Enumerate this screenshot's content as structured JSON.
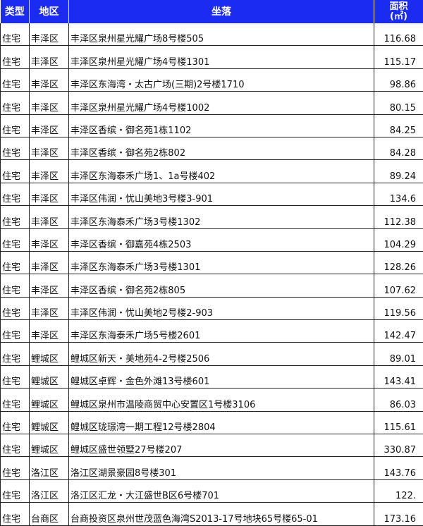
{
  "headers": {
    "type": "类型",
    "district": "地区",
    "location": "坐落",
    "area": "面积",
    "area_unit": "(㎡)"
  },
  "header_color": "#1c2bf2",
  "rows": [
    {
      "type": "住宅",
      "district": "丰泽区",
      "location": "丰泽区泉州星光耀广场8号楼505",
      "area": "116.68"
    },
    {
      "type": "住宅",
      "district": "丰泽区",
      "location": "丰泽区泉州星光耀广场4号楼1301",
      "area": "115.17"
    },
    {
      "type": "住宅",
      "district": "丰泽区",
      "location": "丰泽区东海湾・太古广场(三期)2号楼1710",
      "area": "98.86"
    },
    {
      "type": "住宅",
      "district": "丰泽区",
      "location": "丰泽区泉州星光耀广场4号楼1002",
      "area": "80.15"
    },
    {
      "type": "住宅",
      "district": "丰泽区",
      "location": "丰泽区香缤・御名苑1栋1102",
      "area": "84.25"
    },
    {
      "type": "住宅",
      "district": "丰泽区",
      "location": "丰泽区香缤・御名苑2栋802",
      "area": "84.28"
    },
    {
      "type": "住宅",
      "district": "丰泽区",
      "location": "丰泽区东海泰禾广场1、1a号楼402",
      "area": "89.24"
    },
    {
      "type": "住宅",
      "district": "丰泽区",
      "location": "丰泽区伟润・忧山美地3号楼3-901",
      "area": "134.6"
    },
    {
      "type": "住宅",
      "district": "丰泽区",
      "location": "丰泽区东海泰禾广场3号楼1302",
      "area": "112.38"
    },
    {
      "type": "住宅",
      "district": "丰泽区",
      "location": "丰泽区香缤・御嘉苑4栋2503",
      "area": "104.29"
    },
    {
      "type": "住宅",
      "district": "丰泽区",
      "location": "丰泽区东海泰禾广场3号楼1301",
      "area": "128.26"
    },
    {
      "type": "住宅",
      "district": "丰泽区",
      "location": "丰泽区香缤・御名苑2栋805",
      "area": "107.62"
    },
    {
      "type": "住宅",
      "district": "丰泽区",
      "location": "丰泽区伟润・忧山美地2号楼2-903",
      "area": "119.56"
    },
    {
      "type": "住宅",
      "district": "丰泽区",
      "location": "丰泽区东海泰禾广场5号楼2601",
      "area": "142.47"
    },
    {
      "type": "住宅",
      "district": "鲤城区",
      "location": "鲤城区新天・美地苑4-2号楼2506",
      "area": "89.01"
    },
    {
      "type": "住宅",
      "district": "鲤城区",
      "location": "鲤城区卓辉・金色外滩13号楼601",
      "area": "143.41"
    },
    {
      "type": "住宅",
      "district": "鲤城区",
      "location": "鲤城区泉州市温陵商贸中心安置区1号楼3106",
      "area": "86.03"
    },
    {
      "type": "住宅",
      "district": "鲤城区",
      "location": "鲤城区珑璟湾一期工程12号楼2804",
      "area": "115.61"
    },
    {
      "type": "住宅",
      "district": "鲤城区",
      "location": "鲤城区盛世领墅27号楼207",
      "area": "330.87"
    },
    {
      "type": "住宅",
      "district": "洛江区",
      "location": "洛江区湖景豪园8号楼301",
      "area": "143.76"
    },
    {
      "type": "住宅",
      "district": "洛江区",
      "location": "洛江区汇龙・大江盛世B区6号楼701",
      "area": "122."
    },
    {
      "type": "住宅",
      "district": "台商区",
      "location": "台商投资区泉州世茂蓝色海湾S2013-17号地块65号楼65-01",
      "area": "173.16"
    }
  ]
}
